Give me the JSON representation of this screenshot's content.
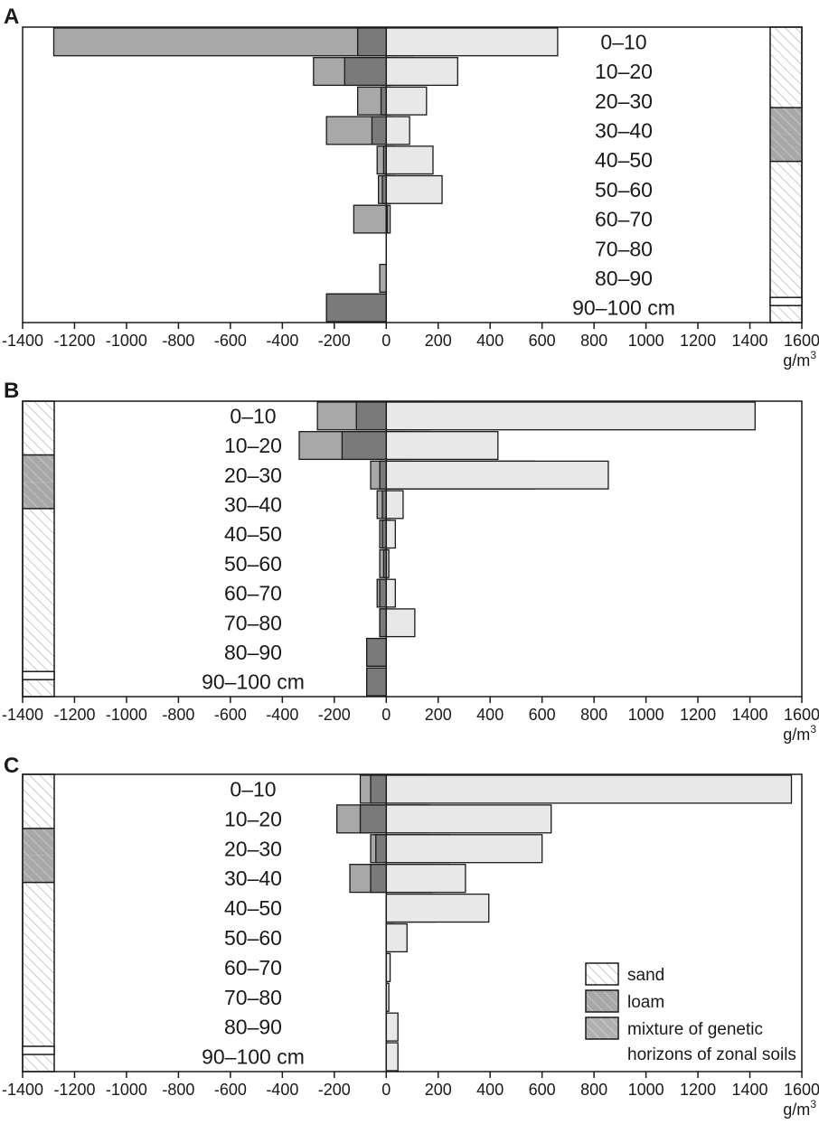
{
  "x_axis": {
    "ticks": [
      -1400,
      -1200,
      -1000,
      -800,
      -600,
      -400,
      -200,
      0,
      200,
      400,
      600,
      800,
      1000,
      1200,
      1400,
      1600
    ],
    "tick_labels": [
      "-1400",
      "-1200",
      "-1000",
      "-800",
      "-600",
      "-400",
      "-200",
      "0",
      "200",
      "400",
      "600",
      "800",
      "1000",
      "1200",
      "1400",
      "1600"
    ],
    "unit_base": "g/m",
    "unit_exp": "3"
  },
  "depth_labels": [
    "0–10",
    "10–20",
    "20–30",
    "30–40",
    "40–50",
    "50–60",
    "60–70",
    "70–80",
    "80–90",
    "90–100 cm"
  ],
  "colors": {
    "left_outer": "#a8a8a8",
    "left_inner": "#7a7a7a",
    "right_inner": "#c8c8c8",
    "right_outer": "#e8e8e8",
    "hatch": "#b8b8b8",
    "mixture_fill": "#b0b0b0",
    "stroke": "#1a1a1a"
  },
  "legend": {
    "items": [
      {
        "key": "sand",
        "lines": [
          "sand"
        ]
      },
      {
        "key": "loam",
        "lines": [
          "loam"
        ]
      },
      {
        "key": "mixture",
        "lines": [
          "mixture of genetic",
          "horizons of zonal soils"
        ]
      }
    ]
  },
  "chart_data": [
    {
      "type": "bar",
      "panel": "A",
      "categories": [
        "0–10",
        "10–20",
        "20–30",
        "30–40",
        "40–50",
        "50–60",
        "60–70",
        "70–80",
        "80–90",
        "90–100 cm"
      ],
      "xlim": [
        -1400,
        1600
      ],
      "series": [
        {
          "values": [
            -1280,
            -280,
            -110,
            -230,
            -35,
            -30,
            -125,
            0,
            -25,
            -230
          ]
        },
        {
          "values": [
            -110,
            -160,
            -20,
            -55,
            -10,
            -15,
            0,
            0,
            0,
            -230
          ]
        },
        {
          "values": [
            105,
            20,
            15,
            25,
            35,
            15,
            15,
            0,
            0,
            0
          ]
        },
        {
          "values": [
            660,
            275,
            155,
            90,
            180,
            215,
            5,
            0,
            0,
            0
          ]
        }
      ],
      "soil_column": {
        "side": "right",
        "layers": [
          "sand",
          "sand",
          "sand",
          "loam",
          "loam",
          "sand",
          "sand",
          "sand",
          "sand",
          "sand",
          "sand"
        ]
      }
    },
    {
      "type": "bar",
      "panel": "B",
      "categories": [
        "0–10",
        "10–20",
        "20–30",
        "30–40",
        "40–50",
        "50–60",
        "60–70",
        "70–80",
        "80–90",
        "90–100 cm"
      ],
      "xlim": [
        -1400,
        1600
      ],
      "series": [
        {
          "values": [
            -265,
            -335,
            -60,
            -35,
            -25,
            -25,
            -35,
            -25,
            -75,
            -75
          ]
        },
        {
          "values": [
            -115,
            -170,
            -25,
            -15,
            -15,
            -10,
            -25,
            -25,
            -75,
            -75
          ]
        },
        {
          "values": [
            170,
            90,
            570,
            15,
            15,
            10,
            10,
            0,
            0,
            0
          ]
        },
        {
          "values": [
            1420,
            430,
            855,
            65,
            35,
            0,
            35,
            110,
            0,
            0
          ]
        }
      ],
      "soil_column": {
        "side": "left",
        "layers": [
          "sand",
          "sand",
          "loam",
          "loam",
          "sand",
          "sand",
          "sand",
          "sand",
          "sand",
          "sand",
          "sand"
        ]
      }
    },
    {
      "type": "bar",
      "panel": "C",
      "categories": [
        "0–10",
        "10–20",
        "20–30",
        "30–40",
        "40–50",
        "50–60",
        "60–70",
        "70–80",
        "80–90",
        "90–100 cm"
      ],
      "xlim": [
        -1400,
        1600
      ],
      "series": [
        {
          "values": [
            -100,
            -190,
            -60,
            -140,
            0,
            0,
            0,
            0,
            0,
            0
          ]
        },
        {
          "values": [
            -60,
            -100,
            -40,
            -60,
            0,
            0,
            0,
            0,
            0,
            0
          ]
        },
        {
          "values": [
            145,
            165,
            245,
            175,
            190,
            30,
            5,
            5,
            5,
            0
          ]
        },
        {
          "values": [
            1560,
            635,
            600,
            305,
            395,
            80,
            15,
            10,
            45,
            45
          ]
        }
      ],
      "soil_column": {
        "side": "left",
        "layers": [
          "sand",
          "sand",
          "loam",
          "loam",
          "sand",
          "sand",
          "sand",
          "sand",
          "sand",
          "sand",
          "sand"
        ]
      }
    }
  ]
}
